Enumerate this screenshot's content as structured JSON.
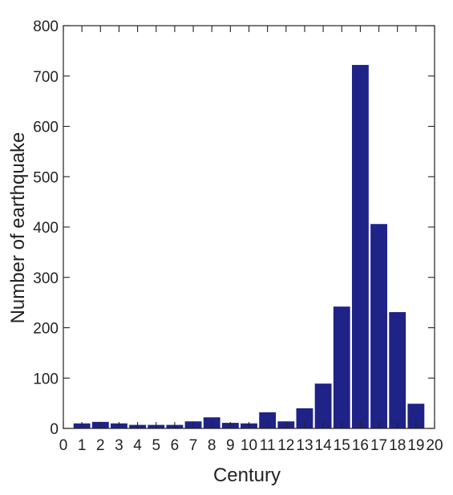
{
  "chart_data": {
    "type": "bar",
    "title": "",
    "xlabel": "Century",
    "ylabel": "Number of earthquake",
    "xlim": [
      0,
      20
    ],
    "ylim": [
      0,
      800
    ],
    "x_ticks": [
      0,
      1,
      2,
      3,
      4,
      5,
      6,
      7,
      8,
      9,
      10,
      11,
      12,
      13,
      14,
      15,
      16,
      17,
      18,
      19,
      20
    ],
    "y_ticks": [
      0,
      100,
      200,
      300,
      400,
      500,
      600,
      700,
      800
    ],
    "grid": false,
    "bar_color": "#1f2286",
    "x": [
      1,
      2,
      3,
      4,
      5,
      6,
      7,
      8,
      9,
      10,
      11,
      12,
      13,
      14,
      15,
      16,
      17,
      18,
      19
    ],
    "values": [
      10,
      13,
      10,
      7,
      7,
      7,
      14,
      22,
      11,
      10,
      32,
      14,
      40,
      89,
      242,
      722,
      406,
      231,
      49
    ]
  }
}
